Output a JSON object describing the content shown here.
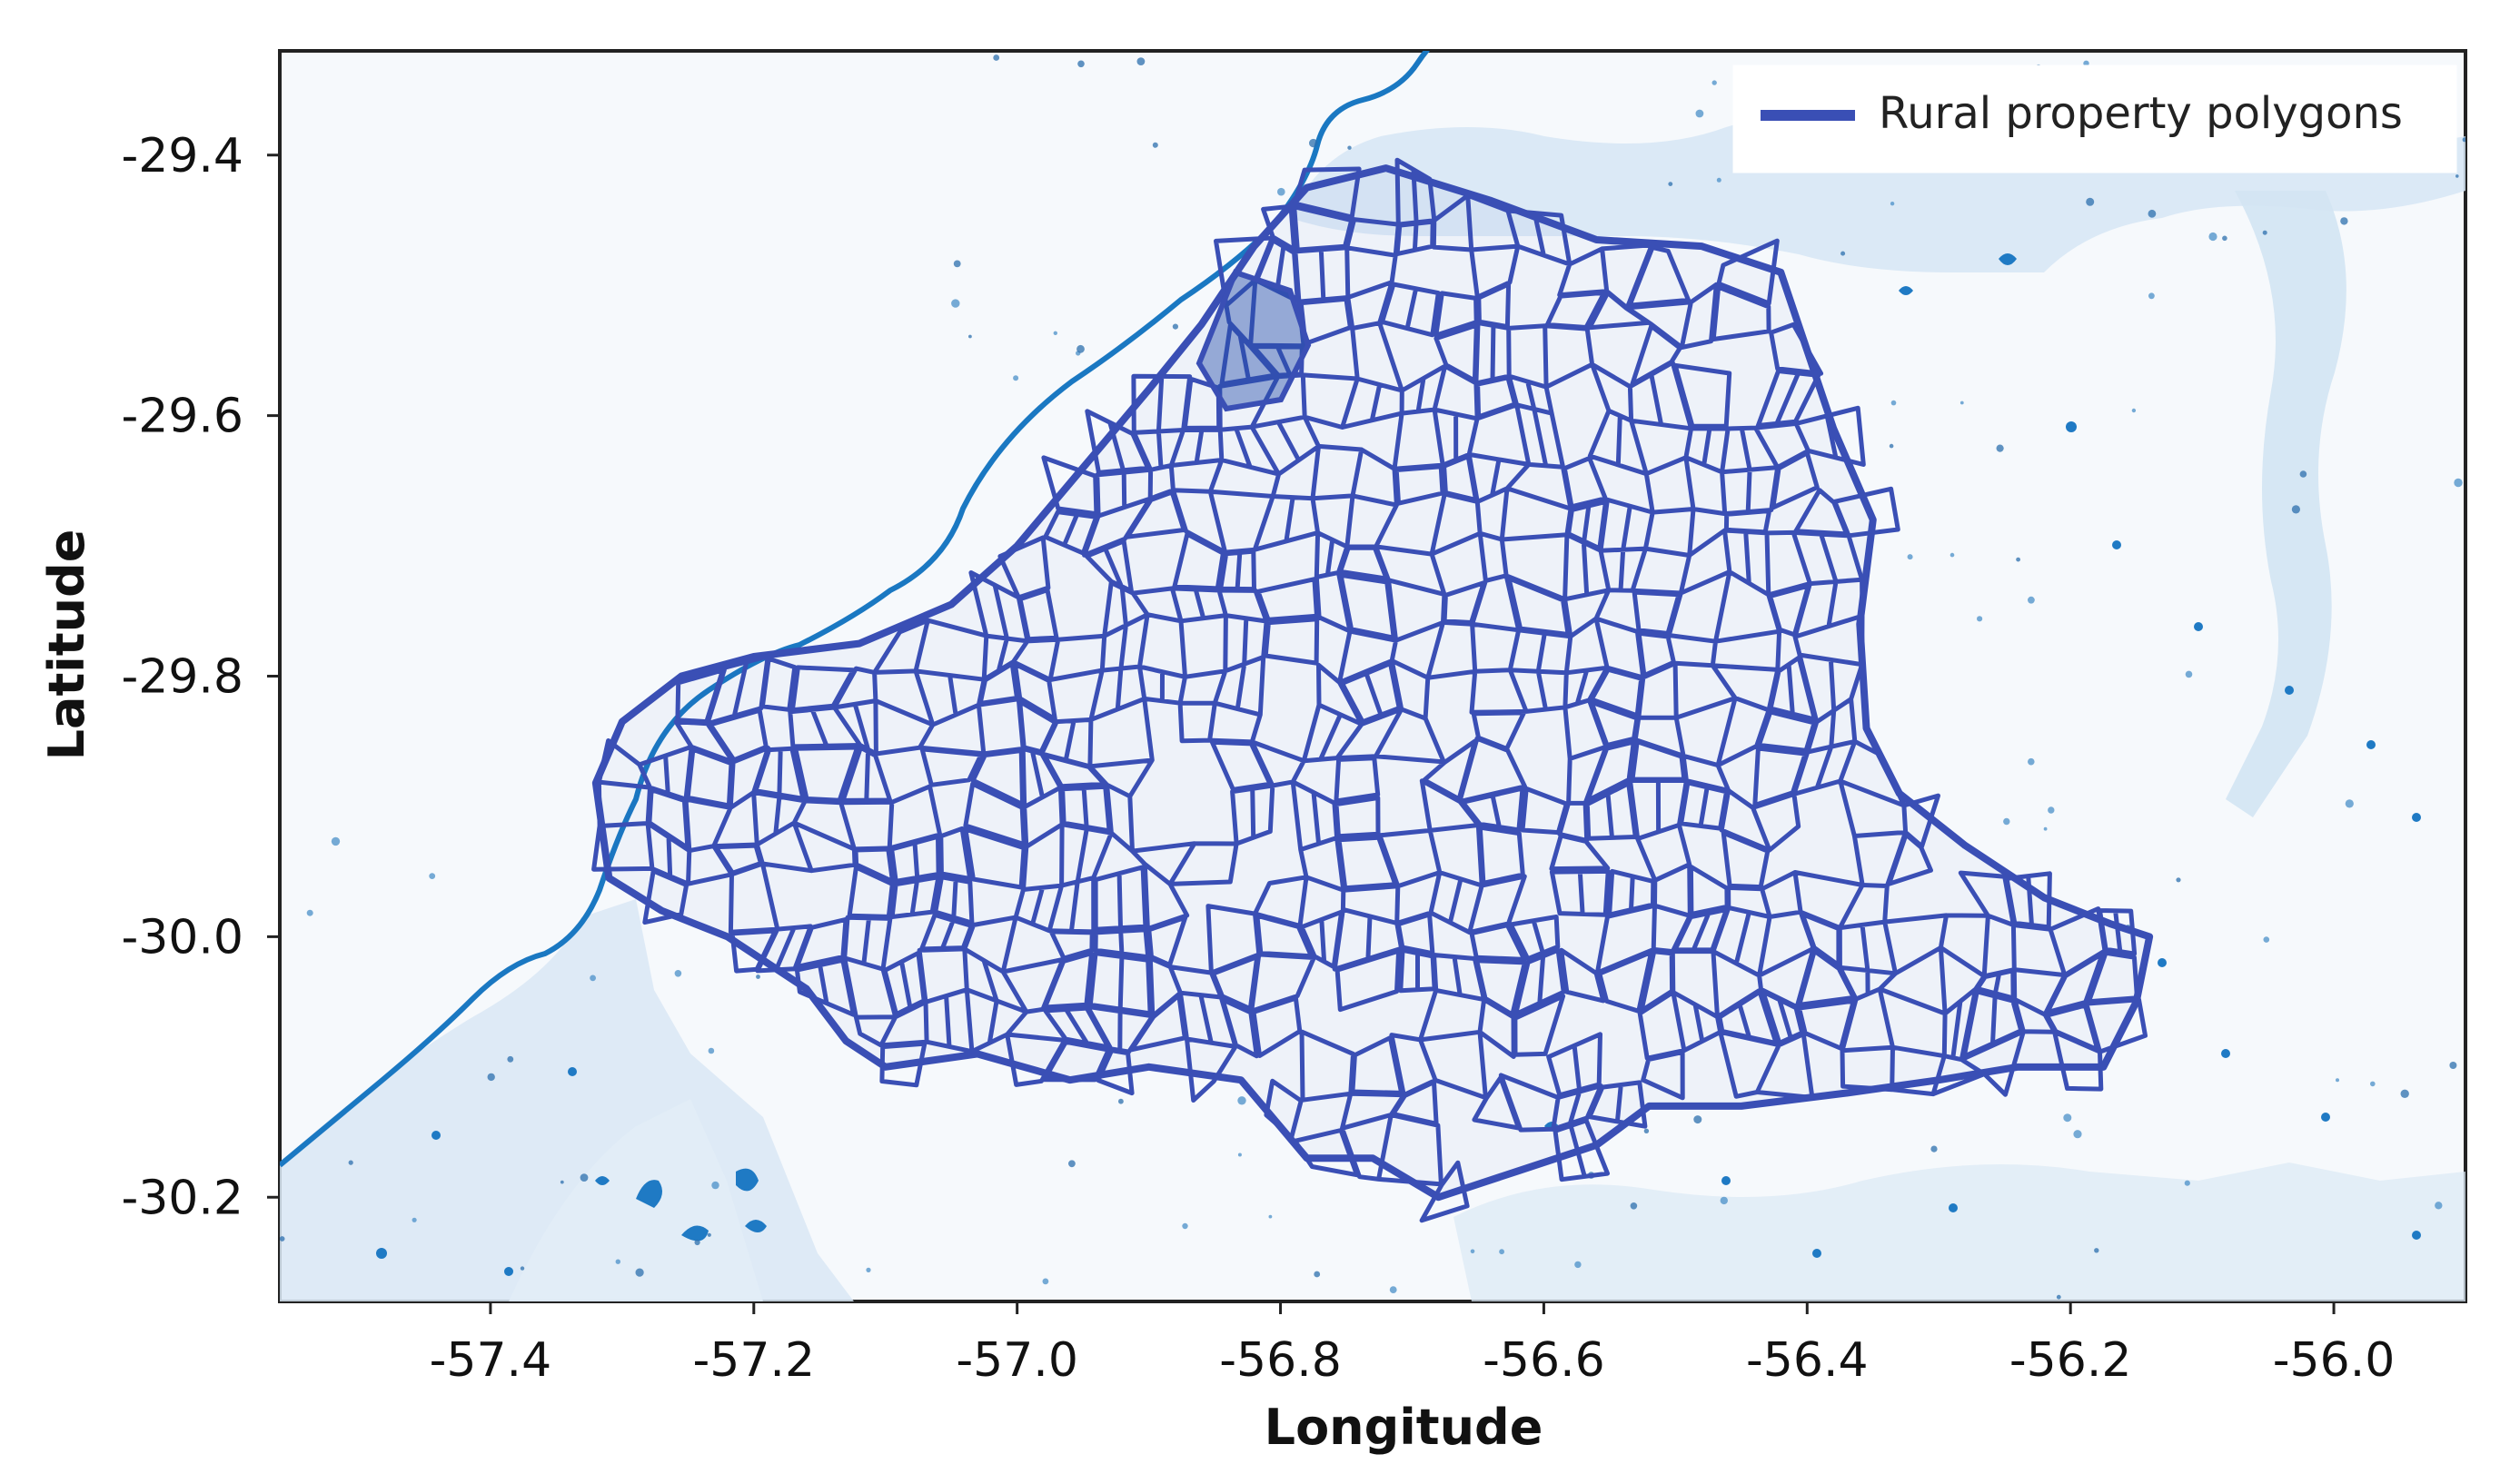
{
  "chart_data": {
    "type": "map",
    "xlabel": "Longitude",
    "ylabel": "Latitude",
    "xlim": [
      -57.56,
      -55.9
    ],
    "ylim": [
      -30.28,
      -29.32
    ],
    "xticks": [
      -57.4,
      -57.2,
      -57.0,
      -56.8,
      -56.6,
      -56.4,
      -56.2,
      -56.0
    ],
    "yticks": [
      -29.4,
      -29.6,
      -29.8,
      -30.0,
      -30.2
    ],
    "xtick_labels": [
      "-57.4",
      "-57.2",
      "-57.0",
      "-56.8",
      "-56.6",
      "-56.4",
      "-56.2",
      "-56.0"
    ],
    "ytick_labels": [
      "-29.4",
      "-29.6",
      "-29.8",
      "-30.0",
      "-30.2"
    ],
    "legend": {
      "placement": "top-right",
      "entries": [
        {
          "label": "Rural property polygons",
          "color": "#3a4fb5"
        }
      ]
    },
    "series": [
      {
        "name": "Rural property polygons",
        "color": "#3a4fb5",
        "boundary": [
          [
            -57.32,
            -29.882
          ],
          [
            -57.3,
            -29.835
          ],
          [
            -57.255,
            -29.8
          ],
          [
            -57.2,
            -29.785
          ],
          [
            -57.12,
            -29.775
          ],
          [
            -57.05,
            -29.745
          ],
          [
            -57.0,
            -29.7
          ],
          [
            -56.95,
            -29.64
          ],
          [
            -56.9,
            -29.58
          ],
          [
            -56.86,
            -29.53
          ],
          [
            -56.82,
            -29.47
          ],
          [
            -56.78,
            -29.425
          ],
          [
            -56.72,
            -29.41
          ],
          [
            -56.64,
            -29.435
          ],
          [
            -56.56,
            -29.465
          ],
          [
            -56.48,
            -29.47
          ],
          [
            -56.42,
            -29.49
          ],
          [
            -56.4,
            -29.55
          ],
          [
            -56.38,
            -29.61
          ],
          [
            -56.35,
            -29.68
          ],
          [
            -56.36,
            -29.76
          ],
          [
            -56.355,
            -29.84
          ],
          [
            -56.33,
            -29.89
          ],
          [
            -56.28,
            -29.93
          ],
          [
            -56.22,
            -29.97
          ],
          [
            -56.17,
            -29.99
          ],
          [
            -56.14,
            -30.0
          ],
          [
            -56.15,
            -30.05
          ],
          [
            -56.175,
            -30.1
          ],
          [
            -56.24,
            -30.1
          ],
          [
            -56.3,
            -30.11
          ],
          [
            -56.37,
            -30.12
          ],
          [
            -56.45,
            -30.13
          ],
          [
            -56.52,
            -30.13
          ],
          [
            -56.56,
            -30.16
          ],
          [
            -56.62,
            -30.18
          ],
          [
            -56.68,
            -30.2
          ],
          [
            -56.73,
            -30.17
          ],
          [
            -56.78,
            -30.17
          ],
          [
            -56.83,
            -30.11
          ],
          [
            -56.9,
            -30.1
          ],
          [
            -56.96,
            -30.11
          ],
          [
            -57.03,
            -30.09
          ],
          [
            -57.1,
            -30.1
          ],
          [
            -57.13,
            -30.08
          ],
          [
            -57.16,
            -30.04
          ],
          [
            -57.22,
            -30.0
          ],
          [
            -57.27,
            -29.98
          ],
          [
            -57.31,
            -29.955
          ]
        ]
      }
    ]
  },
  "legend_label": "Rural property polygons",
  "colors": {
    "polygon": "#3a4fb5",
    "water": "#1a6fbf",
    "background": "#f4f8fc",
    "lowland": "#dbeaf6"
  }
}
